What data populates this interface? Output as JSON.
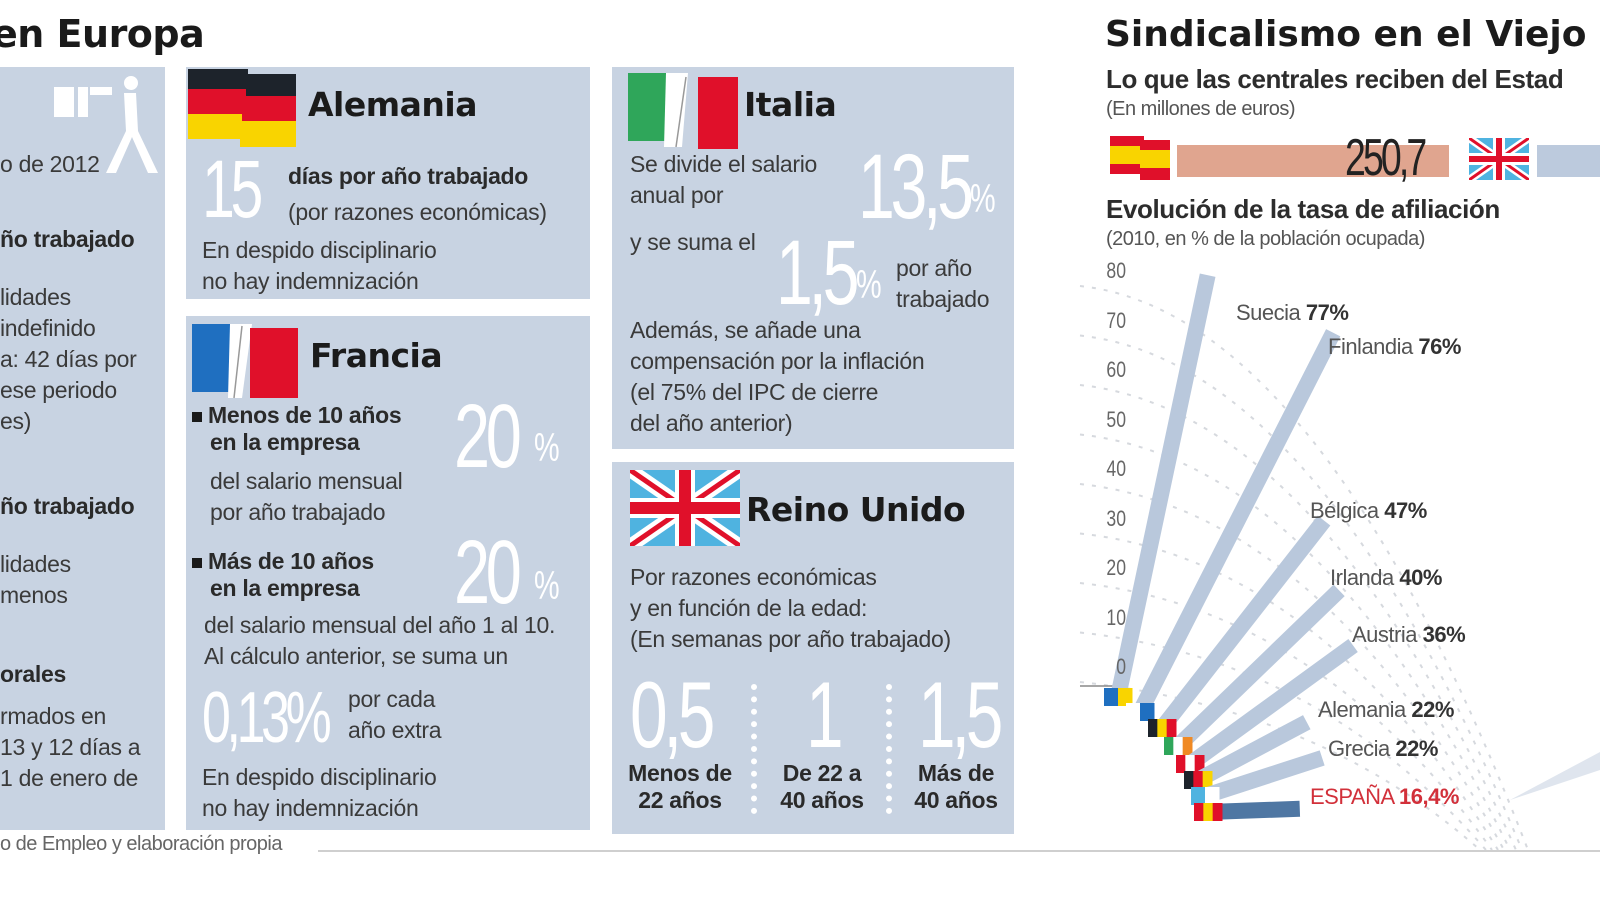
{
  "left_header": {
    "title": "en Europa"
  },
  "spain_panel": {
    "date_fragment": "o de 2012",
    "line_bold_1": "ño trabajado",
    "para_1": [
      "lidades",
      " indefinido",
      "a: 42 días por",
      "ese periodo",
      "es)"
    ],
    "line_bold_2": "ño trabajado",
    "para_2": [
      "lidades",
      "menos"
    ],
    "heading_3": "orales",
    "para_3": [
      "rmados en",
      "13 y 12 días a",
      "1 de enero de"
    ]
  },
  "germany": {
    "name": "Alemania",
    "big_number": "15",
    "line_1": "días por año trabajado",
    "line_2": "(por razones económicas)",
    "note": [
      "En despido disciplinario",
      "no hay indemnización"
    ]
  },
  "france": {
    "name": "Francia",
    "case_1_title": [
      "Menos de 10 años",
      "en la empresa"
    ],
    "case_1_value": "20",
    "case_1_unit": "%",
    "case_1_desc": [
      "del salario mensual",
      "por año trabajado"
    ],
    "case_2_title": [
      "Más de 10 años",
      "en la empresa"
    ],
    "case_2_value": "20",
    "case_2_unit": "%",
    "case_2_desc": [
      "del salario mensual del año 1 al 10.",
      "Al cálculo anterior, se suma un"
    ],
    "extra_value": "0,13%",
    "extra_desc": [
      "por cada",
      "año extra"
    ],
    "note": [
      "En despido disciplinario",
      "no hay indemnización"
    ]
  },
  "italy": {
    "name": "Italia",
    "line_1": [
      "Se divide el salario",
      "anual por"
    ],
    "value_1": "13,5",
    "unit_1": "%",
    "line_2": "y se suma el",
    "value_2": "1,5",
    "unit_2": "%",
    "line_2_suffix": [
      "por año",
      "trabajado"
    ],
    "note": [
      "Además, se añade una",
      "compensación por la inflación",
      "(el 75% del IPC de cierre",
      "del año anterior)"
    ]
  },
  "uk": {
    "name": "Reino Unido",
    "intro": [
      "Por razones económicas",
      "y en función de la edad:",
      "(En semanas por año trabajado)"
    ],
    "brackets": [
      {
        "value": "0,5",
        "label": [
          "Menos de",
          "22 años"
        ]
      },
      {
        "value": "1",
        "label": [
          "De 22 a",
          "40 años"
        ]
      },
      {
        "value": "1,5",
        "label": [
          "Más de",
          "40 años"
        ]
      }
    ]
  },
  "source": {
    "text": "o de Empleo y elaboración propia"
  },
  "right": {
    "title": "Sindicalismo en el Viejo",
    "subsidy": {
      "title": "Lo que las centrales reciben del Estad",
      "note": "(En millones de euros)",
      "spain_value": "250,7",
      "colors": {
        "spain_bar": "#e0a58f",
        "uk_bar": "#bccadd"
      }
    }
  },
  "chart_data": {
    "type": "bar",
    "title": "Evolución de la tasa de afiliación",
    "subtitle": "(2010, en % de la población ocupada)",
    "xlabel": "",
    "ylabel": "",
    "ylim": [
      0,
      80
    ],
    "ticks": [
      "80",
      "70",
      "60",
      "50",
      "40",
      "30",
      "20",
      "10",
      "0"
    ],
    "grid": true,
    "layout": "radial fan",
    "categories": [
      "Suecia",
      "Finlandia",
      "Bélgica",
      "Irlanda",
      "Austria",
      "Alemania",
      "Grecia",
      "ESPAÑA"
    ],
    "values": [
      77,
      76,
      47,
      40,
      36,
      22,
      22,
      16.4
    ],
    "labels": [
      "77%",
      "76%",
      "47%",
      "40%",
      "36%",
      "22%",
      "22%",
      "16,4%"
    ],
    "highlight": "ESPAÑA",
    "colors": {
      "bar": "#b9c8dc",
      "highlight_bar": "#4f77a3",
      "highlight_text": "#d2303a"
    }
  }
}
